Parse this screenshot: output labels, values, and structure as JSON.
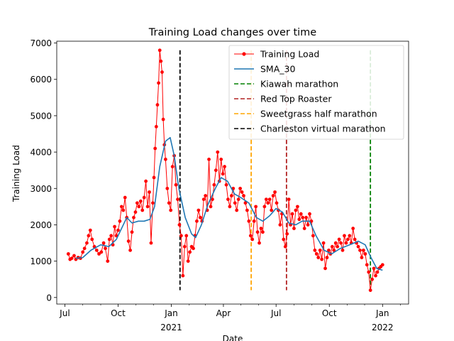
{
  "chart_data": {
    "type": "line",
    "title": "Training Load changes over time",
    "xlabel": "Date",
    "ylabel": "Training Load",
    "xlim": [
      "2020-06-17",
      "2022-02-15"
    ],
    "ylim": [
      -180,
      7050
    ],
    "grid": false,
    "legend_position": "upper-right",
    "x_ticks": [
      {
        "date": "2020-07-01",
        "label": "Jul",
        "year": ""
      },
      {
        "date": "2020-10-01",
        "label": "Oct",
        "year": ""
      },
      {
        "date": "2021-01-01",
        "label": "Jan",
        "year": "2021"
      },
      {
        "date": "2021-04-01",
        "label": "Apr",
        "year": ""
      },
      {
        "date": "2021-07-01",
        "label": "Jul",
        "year": ""
      },
      {
        "date": "2021-10-01",
        "label": "Oct",
        "year": ""
      },
      {
        "date": "2022-01-01",
        "label": "Jan",
        "year": "2022"
      }
    ],
    "x_minor_ticks": [
      "2020-08-01",
      "2020-09-01",
      "2020-11-01",
      "2020-12-01",
      "2021-02-01",
      "2021-03-01",
      "2021-05-01",
      "2021-06-01",
      "2021-08-01",
      "2021-09-01",
      "2021-11-01",
      "2021-12-01",
      "2022-02-01"
    ],
    "y_ticks": [
      0,
      1000,
      2000,
      3000,
      4000,
      5000,
      6000,
      7000
    ],
    "series": [
      {
        "name": "Training Load",
        "color": "#ff0000",
        "marker": "circle",
        "points": [
          [
            "2020-07-07",
            1200
          ],
          [
            "2020-07-10",
            1050
          ],
          [
            "2020-07-13",
            1080
          ],
          [
            "2020-07-17",
            1150
          ],
          [
            "2020-07-20",
            1050
          ],
          [
            "2020-07-24",
            1100
          ],
          [
            "2020-07-28",
            1080
          ],
          [
            "2020-08-01",
            1250
          ],
          [
            "2020-08-04",
            1350
          ],
          [
            "2020-08-08",
            1500
          ],
          [
            "2020-08-11",
            1700
          ],
          [
            "2020-08-14",
            1850
          ],
          [
            "2020-08-17",
            1600
          ],
          [
            "2020-08-21",
            1400
          ],
          [
            "2020-08-25",
            1300
          ],
          [
            "2020-08-29",
            1200
          ],
          [
            "2020-09-02",
            1250
          ],
          [
            "2020-09-06",
            1500
          ],
          [
            "2020-09-09",
            1350
          ],
          [
            "2020-09-13",
            1000
          ],
          [
            "2020-09-16",
            1600
          ],
          [
            "2020-09-19",
            1700
          ],
          [
            "2020-09-22",
            1450
          ],
          [
            "2020-09-25",
            1950
          ],
          [
            "2020-09-28",
            1700
          ],
          [
            "2020-10-01",
            1850
          ],
          [
            "2020-10-04",
            2100
          ],
          [
            "2020-10-07",
            2500
          ],
          [
            "2020-10-10",
            2400
          ],
          [
            "2020-10-13",
            2750
          ],
          [
            "2020-10-16",
            2200
          ],
          [
            "2020-10-19",
            1550
          ],
          [
            "2020-10-22",
            1300
          ],
          [
            "2020-10-25",
            1800
          ],
          [
            "2020-10-28",
            2200
          ],
          [
            "2020-10-31",
            2350
          ],
          [
            "2020-11-03",
            2600
          ],
          [
            "2020-11-06",
            2500
          ],
          [
            "2020-11-09",
            2650
          ],
          [
            "2020-11-12",
            2400
          ],
          [
            "2020-11-15",
            2750
          ],
          [
            "2020-11-18",
            3200
          ],
          [
            "2020-11-21",
            2500
          ],
          [
            "2020-11-24",
            2900
          ],
          [
            "2020-11-27",
            1500
          ],
          [
            "2020-11-30",
            2600
          ],
          [
            "2020-12-02",
            3300
          ],
          [
            "2020-12-04",
            4100
          ],
          [
            "2020-12-06",
            4700
          ],
          [
            "2020-12-08",
            5300
          ],
          [
            "2020-12-10",
            5900
          ],
          [
            "2020-12-12",
            6800
          ],
          [
            "2020-12-14",
            6500
          ],
          [
            "2020-12-16",
            6200
          ],
          [
            "2020-12-18",
            4900
          ],
          [
            "2020-12-20",
            4200
          ],
          [
            "2020-12-22",
            3800
          ],
          [
            "2020-12-25",
            3000
          ],
          [
            "2020-12-28",
            2600
          ],
          [
            "2020-12-31",
            2400
          ],
          [
            "2021-01-03",
            3600
          ],
          [
            "2021-01-06",
            3900
          ],
          [
            "2021-01-09",
            3100
          ],
          [
            "2021-01-12",
            2700
          ],
          [
            "2021-01-15",
            2000
          ],
          [
            "2021-01-18",
            1700
          ],
          [
            "2021-01-21",
            600
          ],
          [
            "2021-01-24",
            1400
          ],
          [
            "2021-01-27",
            1700
          ],
          [
            "2021-01-30",
            1000
          ],
          [
            "2021-02-02",
            1250
          ],
          [
            "2021-02-05",
            1400
          ],
          [
            "2021-02-08",
            1350
          ],
          [
            "2021-02-11",
            1700
          ],
          [
            "2021-02-14",
            2100
          ],
          [
            "2021-02-17",
            2400
          ],
          [
            "2021-02-20",
            2200
          ],
          [
            "2021-02-23",
            2100
          ],
          [
            "2021-02-26",
            2700
          ],
          [
            "2021-03-01",
            2800
          ],
          [
            "2021-03-04",
            2400
          ],
          [
            "2021-03-07",
            3800
          ],
          [
            "2021-03-10",
            2500
          ],
          [
            "2021-03-13",
            2700
          ],
          [
            "2021-03-16",
            3100
          ],
          [
            "2021-03-19",
            3500
          ],
          [
            "2021-03-22",
            4000
          ],
          [
            "2021-03-25",
            3200
          ],
          [
            "2021-03-28",
            3800
          ],
          [
            "2021-03-31",
            3400
          ],
          [
            "2021-04-03",
            3600
          ],
          [
            "2021-04-06",
            3100
          ],
          [
            "2021-04-09",
            2700
          ],
          [
            "2021-04-12",
            2500
          ],
          [
            "2021-04-15",
            2800
          ],
          [
            "2021-04-18",
            3000
          ],
          [
            "2021-04-21",
            2600
          ],
          [
            "2021-04-24",
            2400
          ],
          [
            "2021-04-27",
            2700
          ],
          [
            "2021-04-30",
            3000
          ],
          [
            "2021-05-03",
            2900
          ],
          [
            "2021-05-06",
            2800
          ],
          [
            "2021-05-09",
            2600
          ],
          [
            "2021-05-12",
            2400
          ],
          [
            "2021-05-15",
            2100
          ],
          [
            "2021-05-18",
            1700
          ],
          [
            "2021-05-21",
            1600
          ],
          [
            "2021-05-24",
            2100
          ],
          [
            "2021-05-27",
            2500
          ],
          [
            "2021-05-30",
            1800
          ],
          [
            "2021-06-02",
            1500
          ],
          [
            "2021-06-05",
            1900
          ],
          [
            "2021-06-08",
            1800
          ],
          [
            "2021-06-11",
            2500
          ],
          [
            "2021-06-14",
            2700
          ],
          [
            "2021-06-17",
            2600
          ],
          [
            "2021-06-20",
            2700
          ],
          [
            "2021-06-23",
            2400
          ],
          [
            "2021-06-26",
            2800
          ],
          [
            "2021-06-29",
            2900
          ],
          [
            "2021-07-02",
            2600
          ],
          [
            "2021-07-05",
            2400
          ],
          [
            "2021-07-08",
            2000
          ],
          [
            "2021-07-11",
            2300
          ],
          [
            "2021-07-14",
            1600
          ],
          [
            "2021-07-17",
            1400
          ],
          [
            "2021-07-20",
            1750
          ],
          [
            "2021-07-23",
            2700
          ],
          [
            "2021-07-26",
            2000
          ],
          [
            "2021-07-29",
            2300
          ],
          [
            "2021-08-01",
            1900
          ],
          [
            "2021-08-04",
            2400
          ],
          [
            "2021-08-07",
            2500
          ],
          [
            "2021-08-10",
            2150
          ],
          [
            "2021-08-13",
            2300
          ],
          [
            "2021-08-16",
            2200
          ],
          [
            "2021-08-19",
            1900
          ],
          [
            "2021-08-22",
            2200
          ],
          [
            "2021-08-25",
            2000
          ],
          [
            "2021-08-28",
            2300
          ],
          [
            "2021-08-31",
            2100
          ],
          [
            "2021-09-03",
            1700
          ],
          [
            "2021-09-06",
            1300
          ],
          [
            "2021-09-09",
            1200
          ],
          [
            "2021-09-12",
            1100
          ],
          [
            "2021-09-15",
            1300
          ],
          [
            "2021-09-18",
            1050
          ],
          [
            "2021-09-21",
            1500
          ],
          [
            "2021-09-24",
            800
          ],
          [
            "2021-09-27",
            1100
          ],
          [
            "2021-09-30",
            1300
          ],
          [
            "2021-10-03",
            1200
          ],
          [
            "2021-10-06",
            1400
          ],
          [
            "2021-10-09",
            1300
          ],
          [
            "2021-10-12",
            1500
          ],
          [
            "2021-10-15",
            1400
          ],
          [
            "2021-10-18",
            1600
          ],
          [
            "2021-10-21",
            1500
          ],
          [
            "2021-10-24",
            1300
          ],
          [
            "2021-10-27",
            1700
          ],
          [
            "2021-10-30",
            1500
          ],
          [
            "2021-11-02",
            1600
          ],
          [
            "2021-11-05",
            1700
          ],
          [
            "2021-11-08",
            1500
          ],
          [
            "2021-11-11",
            1900
          ],
          [
            "2021-11-14",
            1600
          ],
          [
            "2021-11-17",
            1500
          ],
          [
            "2021-11-20",
            1400
          ],
          [
            "2021-11-23",
            1300
          ],
          [
            "2021-11-26",
            1100
          ],
          [
            "2021-11-29",
            1300
          ],
          [
            "2021-12-02",
            1200
          ],
          [
            "2021-12-05",
            900
          ],
          [
            "2021-12-08",
            700
          ],
          [
            "2021-12-11",
            200
          ],
          [
            "2021-12-14",
            500
          ],
          [
            "2021-12-17",
            800
          ],
          [
            "2021-12-20",
            600
          ],
          [
            "2021-12-23",
            700
          ],
          [
            "2021-12-26",
            800
          ],
          [
            "2021-12-29",
            850
          ],
          [
            "2022-01-01",
            900
          ]
        ]
      },
      {
        "name": "SMA_30",
        "color": "#1f77b4",
        "marker": "none",
        "points": [
          [
            "2020-07-20",
            1080
          ],
          [
            "2020-08-01",
            1100
          ],
          [
            "2020-08-15",
            1300
          ],
          [
            "2020-09-01",
            1450
          ],
          [
            "2020-09-15",
            1400
          ],
          [
            "2020-09-28",
            1600
          ],
          [
            "2020-10-10",
            2000
          ],
          [
            "2020-10-16",
            2200
          ],
          [
            "2020-10-25",
            2050
          ],
          [
            "2020-11-05",
            2100
          ],
          [
            "2020-11-15",
            2100
          ],
          [
            "2020-11-25",
            2150
          ],
          [
            "2020-12-03",
            2500
          ],
          [
            "2020-12-12",
            3600
          ],
          [
            "2020-12-22",
            4300
          ],
          [
            "2020-12-30",
            4400
          ],
          [
            "2021-01-06",
            3900
          ],
          [
            "2021-01-14",
            3000
          ],
          [
            "2021-01-25",
            2200
          ],
          [
            "2021-02-05",
            1750
          ],
          [
            "2021-02-12",
            1650
          ],
          [
            "2021-02-22",
            2000
          ],
          [
            "2021-03-05",
            2550
          ],
          [
            "2021-03-18",
            3000
          ],
          [
            "2021-03-28",
            3300
          ],
          [
            "2021-04-08",
            3200
          ],
          [
            "2021-04-20",
            2850
          ],
          [
            "2021-05-01",
            2750
          ],
          [
            "2021-05-15",
            2600
          ],
          [
            "2021-05-28",
            2200
          ],
          [
            "2021-06-08",
            2100
          ],
          [
            "2021-06-20",
            2250
          ],
          [
            "2021-07-01",
            2450
          ],
          [
            "2021-07-12",
            2350
          ],
          [
            "2021-07-23",
            2050
          ],
          [
            "2021-08-04",
            2000
          ],
          [
            "2021-08-15",
            2100
          ],
          [
            "2021-08-28",
            2100
          ],
          [
            "2021-09-08",
            1700
          ],
          [
            "2021-09-22",
            1300
          ],
          [
            "2021-10-05",
            1200
          ],
          [
            "2021-10-20",
            1350
          ],
          [
            "2021-11-05",
            1450
          ],
          [
            "2021-11-20",
            1550
          ],
          [
            "2021-12-02",
            1450
          ],
          [
            "2021-12-12",
            1100
          ],
          [
            "2021-12-22",
            800
          ],
          [
            "2022-01-01",
            750
          ]
        ]
      }
    ],
    "events": [
      {
        "name": "Kiawah marathon",
        "date": "2021-12-11",
        "color": "#008000"
      },
      {
        "name": "Red Top Roaster",
        "date": "2021-07-19",
        "color": "#b22222"
      },
      {
        "name": "Sweetgrass half marathon",
        "date": "2021-05-19",
        "color": "#ffa500"
      },
      {
        "name": "Charleston virtual marathon",
        "date": "2021-01-16",
        "color": "#000000"
      }
    ],
    "event_line_range": [
      200,
      6800
    ]
  }
}
